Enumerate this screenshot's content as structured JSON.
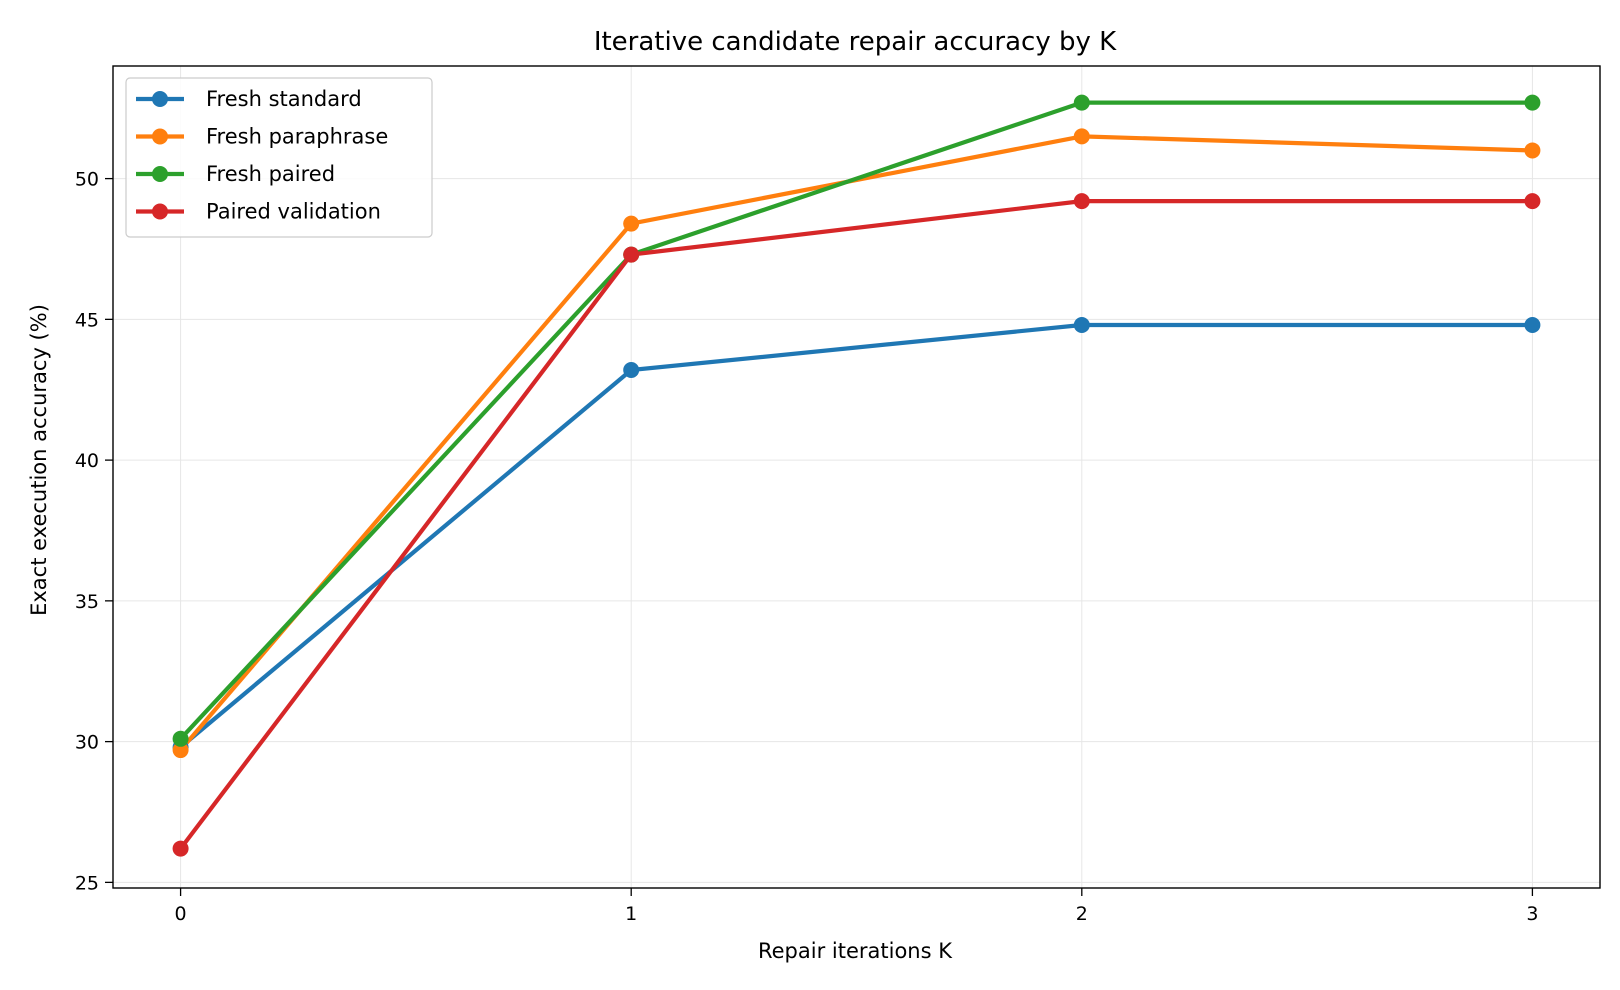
{
  "chart_data": {
    "type": "line",
    "title": "Iterative candidate repair accuracy by K",
    "xlabel": "Repair iterations K",
    "ylabel": "Exact execution accuracy (%)",
    "x": [
      0,
      1,
      2,
      3
    ],
    "xlim": [
      -0.15,
      3.15
    ],
    "ylim": [
      24.8,
      54
    ],
    "xticks": [
      0,
      1,
      2,
      3
    ],
    "yticks": [
      25,
      30,
      35,
      40,
      45,
      50
    ],
    "grid": true,
    "legend_position": "upper-left",
    "series": [
      {
        "name": "Fresh standard",
        "color": "#1f77b4",
        "values": [
          29.8,
          43.2,
          44.8,
          44.8
        ]
      },
      {
        "name": "Fresh paraphrase",
        "color": "#ff7f0e",
        "values": [
          29.7,
          48.4,
          51.5,
          51.0
        ]
      },
      {
        "name": "Fresh paired",
        "color": "#2ca02c",
        "values": [
          30.1,
          47.3,
          52.7,
          52.7
        ]
      },
      {
        "name": "Paired validation",
        "color": "#d62728",
        "values": [
          26.2,
          47.3,
          49.2,
          49.2
        ]
      }
    ]
  }
}
